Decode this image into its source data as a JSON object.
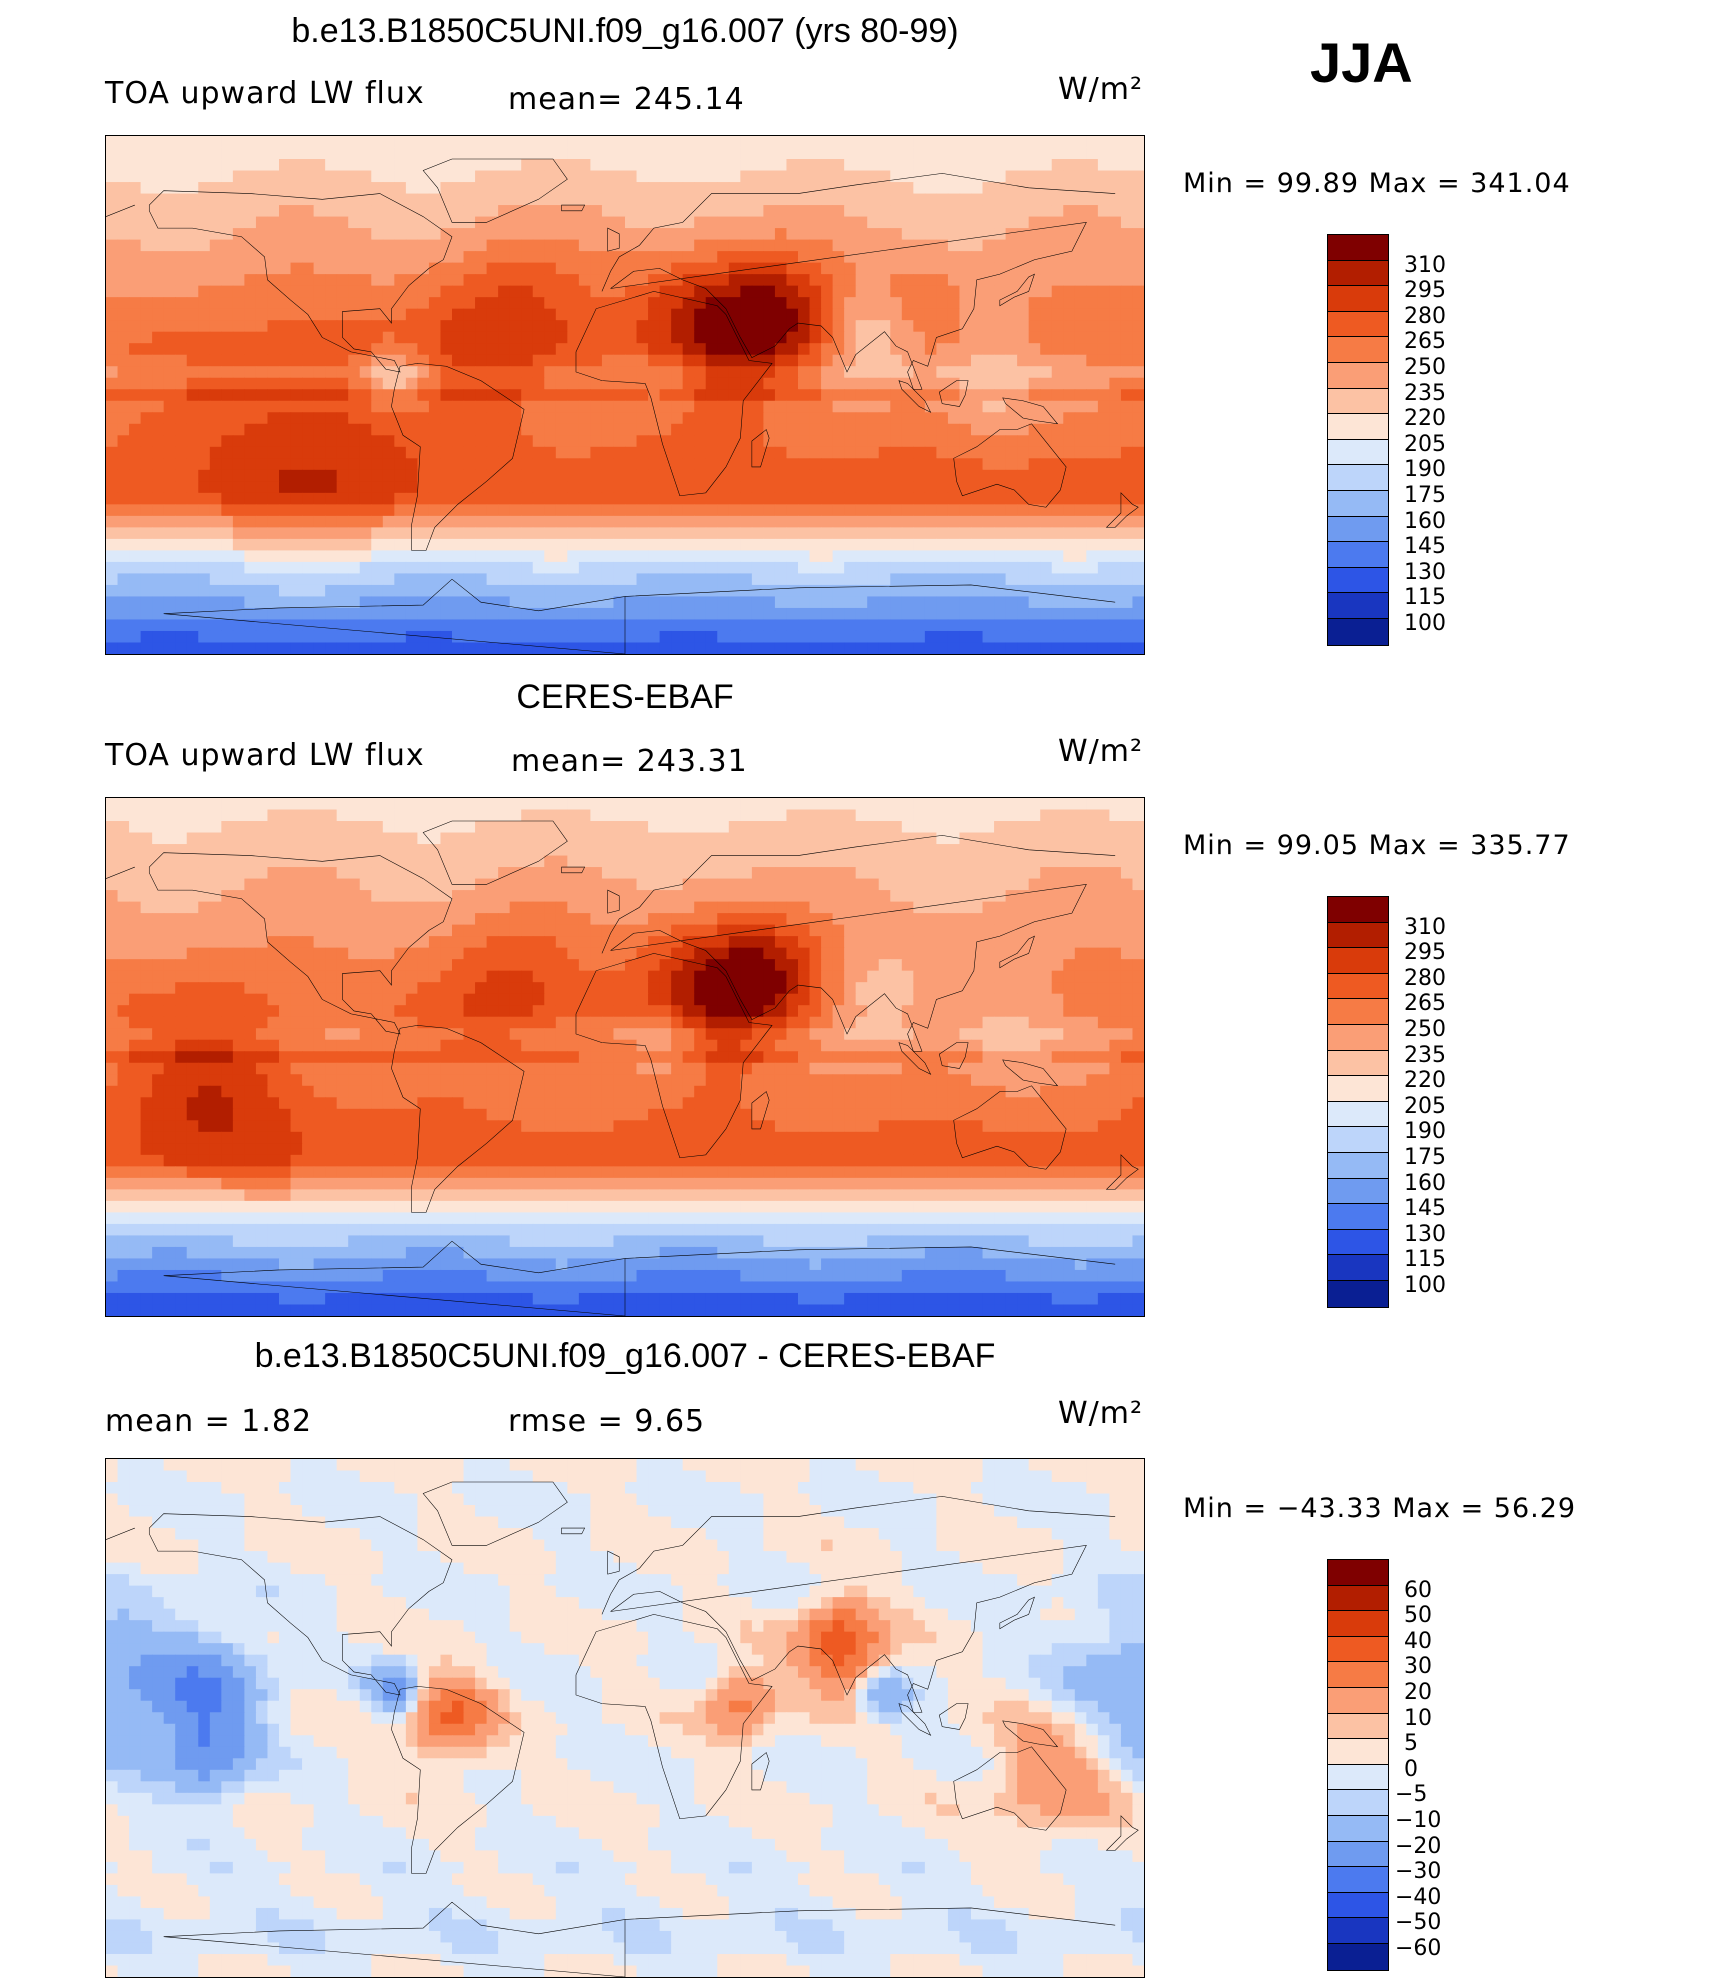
{
  "season": "JJA",
  "units_label": "W/m²",
  "chart_data": [
    {
      "type": "heatmap",
      "title": "b.e13.B1850C5UNI.f09_g16.007 (yrs 80-99)",
      "variable": "TOA upward LW flux",
      "mean_text": "mean=  245.14",
      "units": "W/m²",
      "stats_text": "Min  =    99.89  Max  =  341.04",
      "min": 99.89,
      "max": 341.04,
      "mean": 245.14,
      "colorbar_levels": [
        "310",
        "295",
        "280",
        "265",
        "250",
        "235",
        "220",
        "205",
        "190",
        "175",
        "160",
        "145",
        "130",
        "115",
        "100"
      ],
      "colorbar_colors": [
        "#7f0000",
        "#b21e00",
        "#d93b0b",
        "#ee5a22",
        "#f67b45",
        "#fa9e76",
        "#fcc2a4",
        "#fde5d6",
        "#dce9fa",
        "#bdd5fa",
        "#95baf5",
        "#6f9bf0",
        "#4c7aef",
        "#2d55e6",
        "#1936c0",
        "#0a1f93"
      ],
      "field": {
        "mode": "full",
        "base": 245,
        "pole_s": 118,
        "pole_n": 210,
        "tropics": 265,
        "equator_band": 230,
        "subtrop_s": 275,
        "hot_spots": [
          {
            "lon": 30,
            "lat": 25,
            "amp": 55,
            "r": 18
          },
          {
            "lon": 55,
            "lat": 28,
            "amp": 45,
            "r": 14
          },
          {
            "lon": 250,
            "lat": -15,
            "amp": 30,
            "r": 25
          },
          {
            "lon": 320,
            "lat": 25,
            "amp": 35,
            "r": 20
          },
          {
            "lon": 100,
            "lat": 35,
            "amp": 15,
            "r": 10
          }
        ],
        "cold_spots": [
          {
            "lon": 85,
            "lat": 20,
            "amp": -35,
            "r": 12
          },
          {
            "lon": 125,
            "lat": 5,
            "amp": -30,
            "r": 15
          },
          {
            "lon": 280,
            "lat": 5,
            "amp": -45,
            "r": 8
          },
          {
            "lon": 15,
            "lat": 5,
            "amp": -25,
            "r": 10
          }
        ]
      }
    },
    {
      "type": "heatmap",
      "title": "CERES-EBAF",
      "variable": "TOA upward LW flux",
      "mean_text": "mean=  243.31",
      "units": "W/m²",
      "stats_text": "Min  =    99.05  Max  =  335.77",
      "min": 99.05,
      "max": 335.77,
      "mean": 243.31,
      "colorbar_levels": [
        "310",
        "295",
        "280",
        "265",
        "250",
        "235",
        "220",
        "205",
        "190",
        "175",
        "160",
        "145",
        "130",
        "115",
        "100"
      ],
      "colorbar_colors": [
        "#7f0000",
        "#b21e00",
        "#d93b0b",
        "#ee5a22",
        "#f67b45",
        "#fa9e76",
        "#fcc2a4",
        "#fde5d6",
        "#dce9fa",
        "#bdd5fa",
        "#95baf5",
        "#6f9bf0",
        "#4c7aef",
        "#2d55e6",
        "#1936c0",
        "#0a1f93"
      ],
      "field": {
        "mode": "full",
        "base": 243,
        "pole_s": 115,
        "pole_n": 215,
        "tropics": 262,
        "equator_band": 232,
        "subtrop_s": 272,
        "hot_spots": [
          {
            "lon": 30,
            "lat": 25,
            "amp": 55,
            "r": 18
          },
          {
            "lon": 50,
            "lat": 30,
            "amp": 40,
            "r": 12
          },
          {
            "lon": 220,
            "lat": -12,
            "amp": 35,
            "r": 22
          },
          {
            "lon": 320,
            "lat": 25,
            "amp": 30,
            "r": 18
          }
        ],
        "cold_spots": [
          {
            "lon": 90,
            "lat": 20,
            "amp": -30,
            "r": 12
          },
          {
            "lon": 130,
            "lat": 8,
            "amp": -25,
            "r": 14
          },
          {
            "lon": 15,
            "lat": 5,
            "amp": -30,
            "r": 10
          }
        ]
      }
    },
    {
      "type": "heatmap",
      "title": "b.e13.B1850C5UNI.f09_g16.007 - CERES-EBAF",
      "mean_text": "mean  =     1.82",
      "rmse_text": "rmse  =     9.65",
      "units": "W/m²",
      "stats_text": "Min  = −43.33  Max  =    56.29",
      "min": -43.33,
      "max": 56.29,
      "mean": 1.82,
      "rmse": 9.65,
      "colorbar_levels": [
        "60",
        "50",
        "40",
        "30",
        "20",
        "10",
        "5",
        "0",
        "−5",
        "−10",
        "−20",
        "−30",
        "−40",
        "−50",
        "−60"
      ],
      "colorbar_colors": [
        "#7f0000",
        "#b21e00",
        "#d93b0b",
        "#ee5a22",
        "#f67b45",
        "#fa9e76",
        "#fcc2a4",
        "#fde5d6",
        "#dce9fa",
        "#bdd5fa",
        "#95baf5",
        "#6f9bf0",
        "#4c7aef",
        "#2d55e6",
        "#1936c0",
        "#0a1f93"
      ],
      "field": {
        "mode": "diff",
        "base": 0,
        "hot_spots": [
          {
            "lon": 75,
            "lat": 25,
            "amp": 40,
            "r": 10
          },
          {
            "lon": 40,
            "lat": 5,
            "amp": 25,
            "r": 8
          },
          {
            "lon": 300,
            "lat": 0,
            "amp": 30,
            "r": 10
          },
          {
            "lon": 150,
            "lat": -20,
            "amp": 18,
            "r": 15
          }
        ],
        "cold_spots": [
          {
            "lon": 215,
            "lat": 8,
            "amp": -25,
            "r": 14
          },
          {
            "lon": 180,
            "lat": 10,
            "amp": -18,
            "r": 20
          },
          {
            "lon": 215,
            "lat": -15,
            "amp": -20,
            "r": 10
          },
          {
            "lon": 280,
            "lat": 10,
            "amp": -25,
            "r": 6
          },
          {
            "lon": 90,
            "lat": 8,
            "amp": -20,
            "r": 6
          }
        ]
      }
    }
  ]
}
